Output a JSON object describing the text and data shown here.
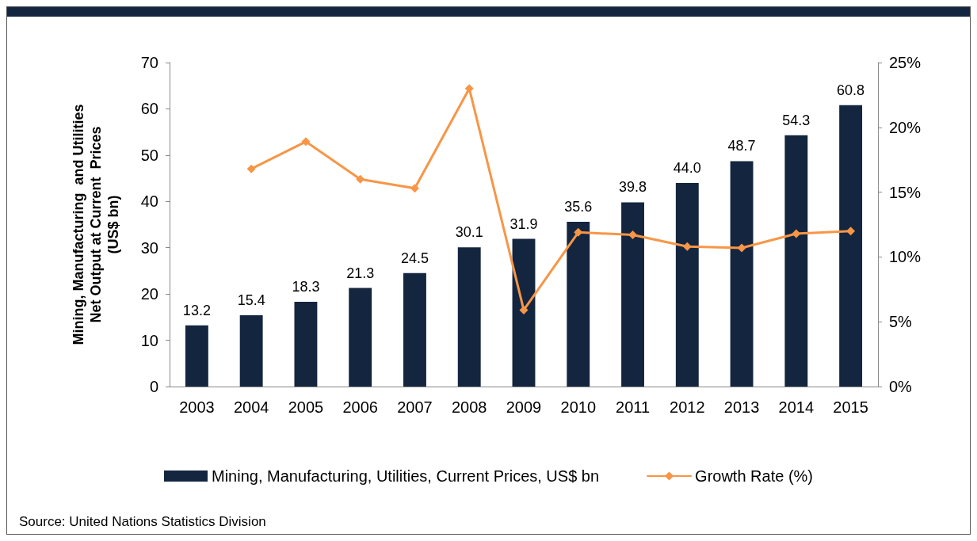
{
  "chart_data": {
    "type": "bar",
    "ylabel": "Mining, Manufacturing  and Utilities\nNet Output at Current  Prices\n(US$ bn)",
    "categories": [
      "2003",
      "2004",
      "2005",
      "2006",
      "2007",
      "2008",
      "2009",
      "2010",
      "2011",
      "2012",
      "2013",
      "2014",
      "2015"
    ],
    "series": [
      {
        "name": "Mining, Manufacturing, Utilities, Current Prices, US$ bn",
        "color": "#14253f",
        "values": [
          13.2,
          15.4,
          18.3,
          21.3,
          24.5,
          30.1,
          31.9,
          35.6,
          39.8,
          44.0,
          48.7,
          54.3,
          60.8
        ],
        "value_labels": [
          "13.2",
          "15.4",
          "18.3",
          "21.3",
          "24.5",
          "30.1",
          "31.9",
          "35.6",
          "39.8",
          "44.0",
          "48.7",
          "54.3",
          "60.8"
        ]
      },
      {
        "name": "Growth Rate (%)",
        "type": "line",
        "axis": "y2",
        "color": "#f79646",
        "marker": "diamond",
        "values": [
          null,
          16.8,
          18.9,
          16.0,
          15.3,
          23.0,
          5.9,
          11.9,
          11.7,
          10.8,
          10.7,
          11.8,
          12.0
        ]
      }
    ],
    "ylim": [
      0,
      70
    ],
    "yticks": [
      0,
      10,
      20,
      30,
      40,
      50,
      60,
      70
    ],
    "y2lim": [
      0,
      25
    ],
    "y2ticks": [
      {
        "value": 0,
        "label": "0%"
      },
      {
        "value": 5,
        "label": "5%"
      },
      {
        "value": 10,
        "label": "10%"
      },
      {
        "value": 15,
        "label": "15%"
      },
      {
        "value": 20,
        "label": "20%"
      },
      {
        "value": 25,
        "label": "25%"
      }
    ],
    "grid": false,
    "legend": "bottom",
    "annotations": [
      "Source: United Nations Statistics Division"
    ]
  }
}
